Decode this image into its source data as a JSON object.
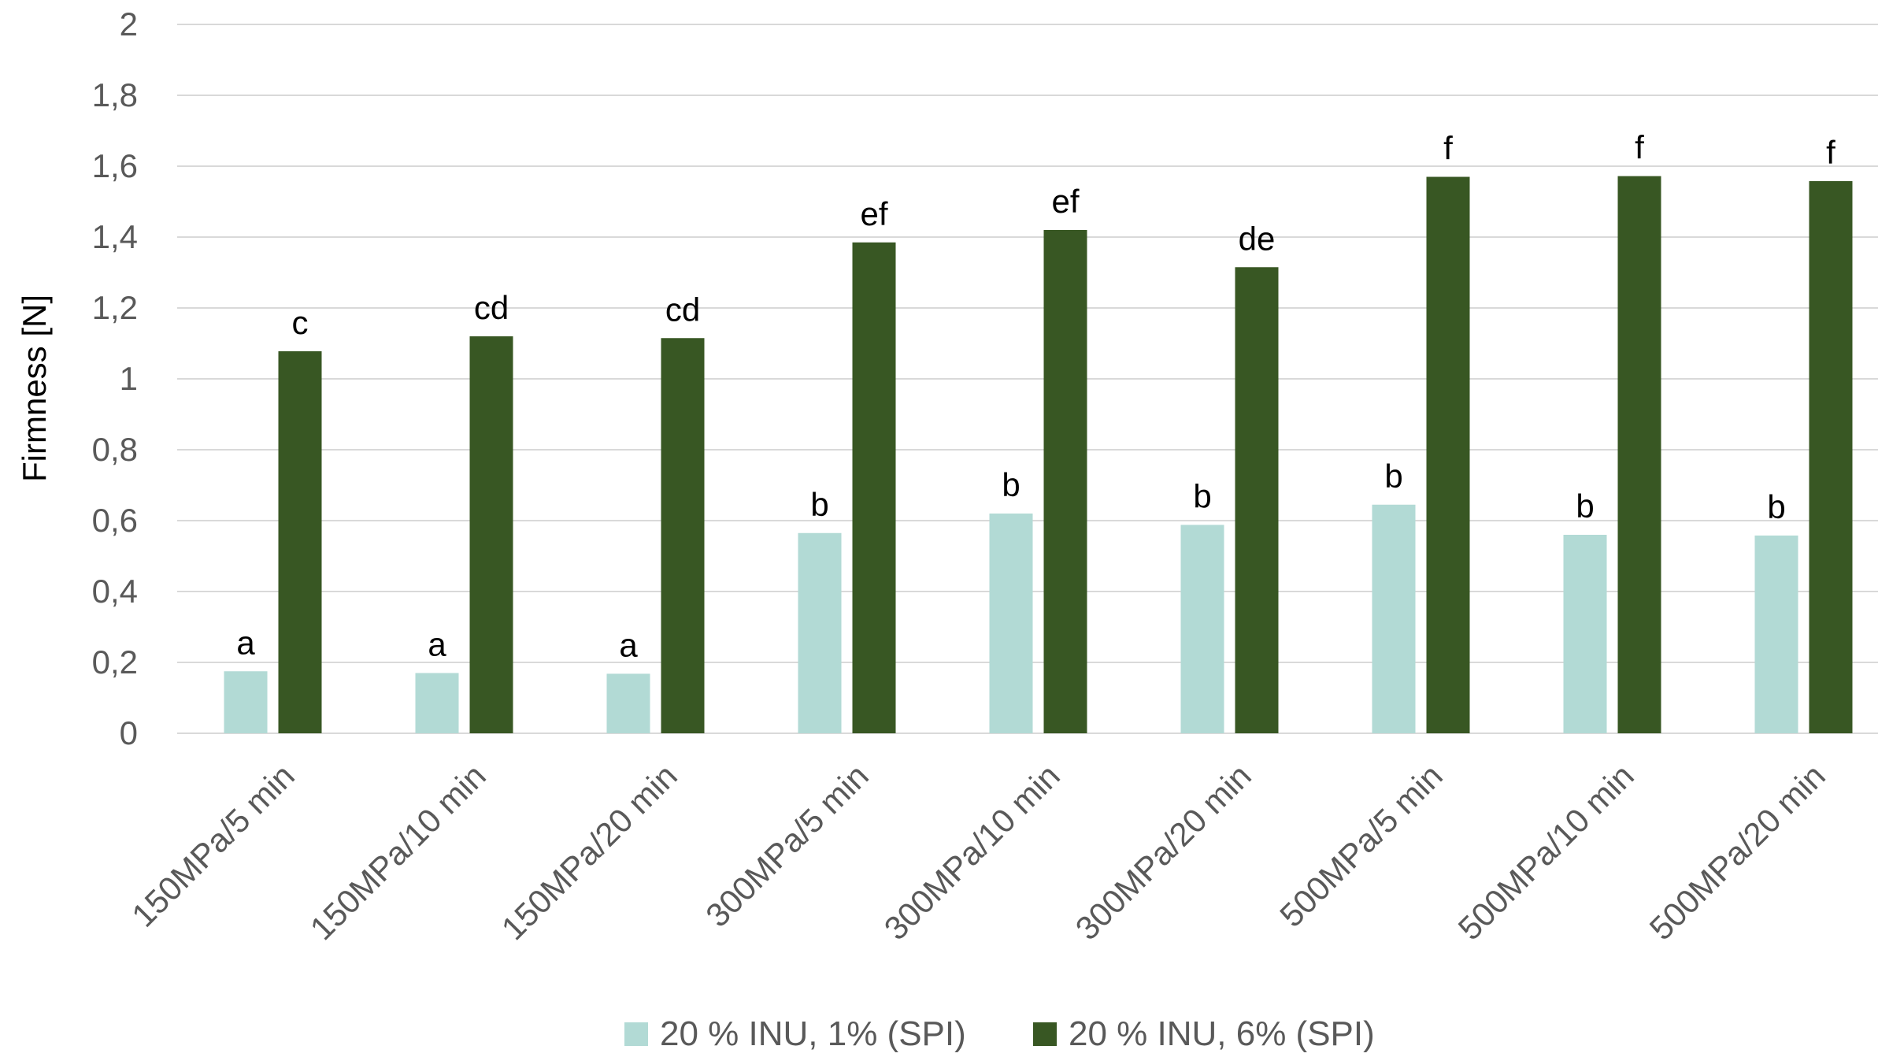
{
  "chart_data": {
    "type": "bar",
    "title": "",
    "xlabel": "",
    "ylabel": "Firmness [N]",
    "ylim": [
      0,
      2
    ],
    "yticks": [
      "0",
      "0,2",
      "0,4",
      "0,6",
      "0,8",
      "1",
      "1,2",
      "1,4",
      "1,6",
      "1,8",
      "2"
    ],
    "grid": true,
    "legend_position": "bottom",
    "categories": [
      "150MPa/5 min",
      "150MPa/10 min",
      "150MPa/20 min",
      "300MPa/5 min",
      "300MPa/10 min",
      "300MPa/20 min",
      "500MPa/5 min",
      "500MPa/10 min",
      "500MPa/20 min"
    ],
    "series": [
      {
        "name": "20 % INU, 1% (SPI)",
        "color": "#b2dad5",
        "values": [
          0.175,
          0.17,
          0.168,
          0.565,
          0.62,
          0.588,
          0.645,
          0.56,
          0.558
        ],
        "labels": [
          "a",
          "a",
          "a",
          "b",
          "b",
          "b",
          "b",
          "b",
          "b"
        ]
      },
      {
        "name": "20 % INU, 6% (SPI)",
        "color": "#385723",
        "values": [
          1.078,
          1.12,
          1.115,
          1.385,
          1.42,
          1.315,
          1.57,
          1.572,
          1.558
        ],
        "labels": [
          "c",
          "cd",
          "cd",
          "ef",
          "ef",
          "de",
          "f",
          "f",
          "f"
        ]
      }
    ]
  }
}
